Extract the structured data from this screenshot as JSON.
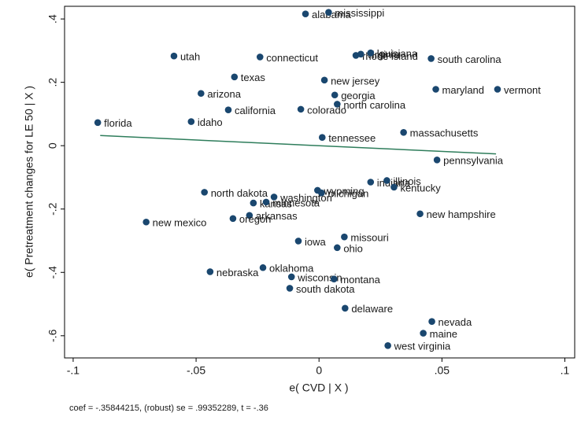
{
  "chart_data": {
    "type": "scatter",
    "xlabel": "e( CVD | X )",
    "ylabel": "e( Pretreatment changes for LE 50 | X )",
    "note": "coef = -.35844215, (robust) se = .99352289, t = -.36",
    "color": "#1a476f",
    "fit_color": "#2e7d5b",
    "grid": false,
    "xlim": [
      -0.1035,
      0.104
    ],
    "ylim": [
      -0.67,
      0.44
    ],
    "xticks": [
      {
        "value": -0.1,
        "label": "-.1"
      },
      {
        "value": -0.05,
        "label": "-.05"
      },
      0,
      {
        "value": 0.05,
        "label": ".05"
      },
      {
        "value": 0.1,
        "label": ".1"
      }
    ],
    "yticks": [
      {
        "value": 0.4,
        "label": ".4"
      },
      {
        "value": 0.2,
        "label": ".2"
      },
      0,
      {
        "value": -0.2,
        "label": "-.2"
      },
      {
        "value": -0.4,
        "label": "-.4"
      },
      {
        "value": -0.6,
        "label": "-.6"
      }
    ],
    "fit": {
      "x": [
        -0.089,
        0.072
      ],
      "values": [
        0.032,
        -0.026
      ]
    },
    "labels": [
      "alabama",
      "mississippi",
      "utah",
      "connecticut",
      "rhode island",
      "virginia",
      "louisiana",
      "south carolina",
      "texas",
      "new jersey",
      "arizona",
      "georgia",
      "maryland",
      "vermont",
      "north carolina",
      "california",
      "colorado",
      "florida",
      "idaho",
      "tennessee",
      "massachusetts",
      "pennsylvania",
      "indiana",
      "illinois",
      "kentucky",
      "wyoming",
      "michigan",
      "north dakota",
      "washington",
      "kansas",
      "minnesota",
      "new hampshire",
      "arkansas",
      "oregon",
      "new mexico",
      "missouri",
      "iowa",
      "ohio",
      "oklahoma",
      "nebraska",
      "wisconsin",
      "montana",
      "south dakota",
      "delaware",
      "nevada",
      "maine",
      "west virginia"
    ],
    "x": [
      -0.0055,
      0.0039,
      -0.059,
      -0.024,
      0.015,
      0.017,
      0.021,
      0.0456,
      -0.0344,
      0.0022,
      -0.048,
      0.0064,
      0.0475,
      0.0726,
      0.0074,
      -0.0369,
      -0.0074,
      -0.09,
      -0.052,
      0.0013,
      0.0344,
      0.048,
      0.021,
      0.0276,
      0.0305,
      -0.0006,
      0.001,
      -0.0466,
      -0.0183,
      -0.0267,
      -0.0215,
      0.0411,
      -0.0283,
      -0.035,
      -0.0703,
      0.0103,
      -0.0084,
      0.0074,
      -0.0228,
      -0.0443,
      -0.0112,
      0.0061,
      -0.0119,
      0.0106,
      0.0459,
      0.0424,
      0.028
    ],
    "values": [
      0.416,
      0.421,
      0.283,
      0.28,
      0.285,
      0.289,
      0.293,
      0.275,
      0.217,
      0.207,
      0.165,
      0.16,
      0.178,
      0.178,
      0.131,
      0.113,
      0.115,
      0.073,
      0.076,
      0.026,
      0.042,
      -0.045,
      -0.115,
      -0.11,
      -0.131,
      -0.141,
      -0.149,
      -0.147,
      -0.162,
      -0.181,
      -0.178,
      -0.215,
      -0.22,
      -0.23,
      -0.241,
      -0.288,
      -0.301,
      -0.322,
      -0.385,
      -0.398,
      -0.414,
      -0.421,
      -0.45,
      -0.513,
      -0.555,
      -0.592,
      -0.631
    ]
  }
}
